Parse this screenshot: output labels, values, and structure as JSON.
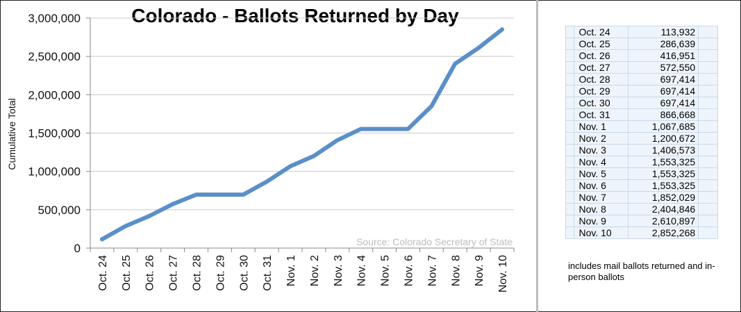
{
  "chart_data": {
    "type": "line",
    "title": "Colorado - Ballots Returned by Day",
    "ylabel": "Cumulative Total",
    "xlabel": "",
    "source": "Source: Colorado Secretary of State",
    "categories": [
      "Oct. 24",
      "Oct. 25",
      "Oct. 26",
      "Oct. 27",
      "Oct. 28",
      "Oct. 29",
      "Oct. 30",
      "Oct. 31",
      "Nov. 1",
      "Nov. 2",
      "Nov. 3",
      "Nov. 4",
      "Nov. 5",
      "Nov. 6",
      "Nov. 7",
      "Nov. 8",
      "Nov. 9",
      "Nov. 10"
    ],
    "series": [
      {
        "values": [
          113932,
          286639,
          416951,
          572550,
          697414,
          697414,
          697414,
          866668,
          1067685,
          1200672,
          1406573,
          1553325,
          1553325,
          1553325,
          1852029,
          2404846,
          2610897,
          2852268
        ]
      }
    ],
    "ylim": [
      0,
      3000000
    ],
    "yticks": [
      0,
      500000,
      1000000,
      1500000,
      2000000,
      2500000,
      3000000
    ],
    "ytick_labels": [
      "0",
      "500,000",
      "1,000,000",
      "1,500,000",
      "2,000,000",
      "2,500,000",
      "3,000,000"
    ],
    "grid": true,
    "line_color": "#5b8fc7"
  },
  "table": {
    "rows": [
      {
        "date": "Oct. 24",
        "value": "113,932"
      },
      {
        "date": "Oct. 25",
        "value": "286,639"
      },
      {
        "date": "Oct. 26",
        "value": "416,951"
      },
      {
        "date": "Oct. 27",
        "value": "572,550"
      },
      {
        "date": "Oct. 28",
        "value": "697,414"
      },
      {
        "date": "Oct. 29",
        "value": "697,414"
      },
      {
        "date": "Oct. 30",
        "value": "697,414"
      },
      {
        "date": "Oct. 31",
        "value": "866,668"
      },
      {
        "date": "Nov. 1",
        "value": "1,067,685"
      },
      {
        "date": "Nov. 2",
        "value": "1,200,672"
      },
      {
        "date": "Nov. 3",
        "value": "1,406,573"
      },
      {
        "date": "Nov. 4",
        "value": "1,553,325"
      },
      {
        "date": "Nov. 5",
        "value": "1,553,325"
      },
      {
        "date": "Nov. 6",
        "value": "1,553,325"
      },
      {
        "date": "Nov. 7",
        "value": "1,852,029"
      },
      {
        "date": "Nov. 8",
        "value": "2,404,846"
      },
      {
        "date": "Nov. 9",
        "value": "2,610,897"
      },
      {
        "date": "Nov. 10",
        "value": "2,852,268"
      }
    ]
  },
  "note": "includes mail ballots returned and in-person ballots"
}
